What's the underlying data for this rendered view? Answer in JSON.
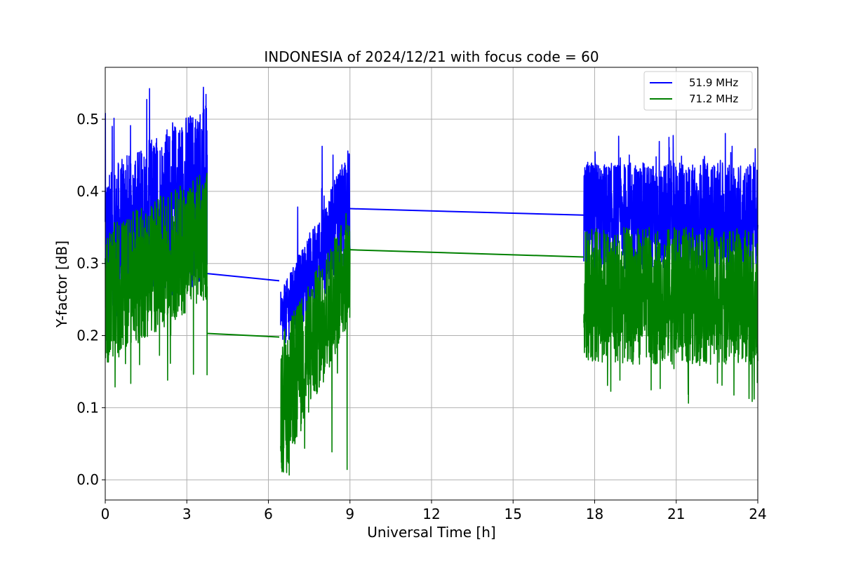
{
  "chart_data": {
    "type": "line",
    "title": "INDONESIA of 2024/12/21 with focus code = 60",
    "xlabel": "Universal Time [h]",
    "ylabel": "Y-factor [dB]",
    "xlim": [
      0,
      24
    ],
    "ylim": [
      -0.028,
      0.572
    ],
    "xticks": [
      0,
      3,
      6,
      9,
      12,
      15,
      18,
      21,
      24
    ],
    "yticks": [
      0.0,
      0.1,
      0.2,
      0.3,
      0.4,
      0.5
    ],
    "xtick_labels": [
      "0",
      "3",
      "6",
      "9",
      "12",
      "15",
      "18",
      "21",
      "24"
    ],
    "ytick_labels": [
      "0.0",
      "0.1",
      "0.2",
      "0.3",
      "0.4",
      "0.5"
    ],
    "grid": true,
    "legend_position": "top-right",
    "series": [
      {
        "name": "51.9 MHz",
        "color": "#0000ff",
        "segments": [
          {
            "x_start": 0.0,
            "x_end": 3.75,
            "low_start": 0.22,
            "low_end": 0.27,
            "high_start": 0.43,
            "high_end": 0.53,
            "max": 0.545
          },
          {
            "x_start": 6.45,
            "x_end": 9.0,
            "low_start": 0.18,
            "low_end": 0.3,
            "high_start": 0.26,
            "high_end": 0.46,
            "max": 0.473
          },
          {
            "x_start": 17.6,
            "x_end": 24.0,
            "low_start": 0.29,
            "low_end": 0.29,
            "high_start": 0.44,
            "high_end": 0.44,
            "max": 0.483
          }
        ],
        "connectors": [
          {
            "x": [
              3.75,
              6.4
            ],
            "y": [
              0.286,
              0.276
            ]
          },
          {
            "x": [
              9.0,
              17.6
            ],
            "y": [
              0.376,
              0.367
            ]
          }
        ]
      },
      {
        "name": "71.2 MHz",
        "color": "#008000",
        "segments": [
          {
            "x_start": 0.0,
            "x_end": 3.75,
            "low_start": 0.16,
            "low_end": 0.25,
            "high_start": 0.35,
            "high_end": 0.43,
            "min": 0.115
          },
          {
            "x_start": 6.45,
            "x_end": 9.0,
            "low_start": 0.0,
            "low_end": 0.22,
            "high_start": 0.2,
            "high_end": 0.38,
            "min": 0.0
          },
          {
            "x_start": 17.6,
            "x_end": 24.0,
            "low_start": 0.16,
            "low_end": 0.16,
            "high_start": 0.35,
            "high_end": 0.35,
            "min": 0.102
          }
        ],
        "connectors": [
          {
            "x": [
              3.75,
              6.4
            ],
            "y": [
              0.203,
              0.198
            ]
          },
          {
            "x": [
              9.0,
              17.6
            ],
            "y": [
              0.319,
              0.309
            ]
          }
        ]
      }
    ]
  }
}
